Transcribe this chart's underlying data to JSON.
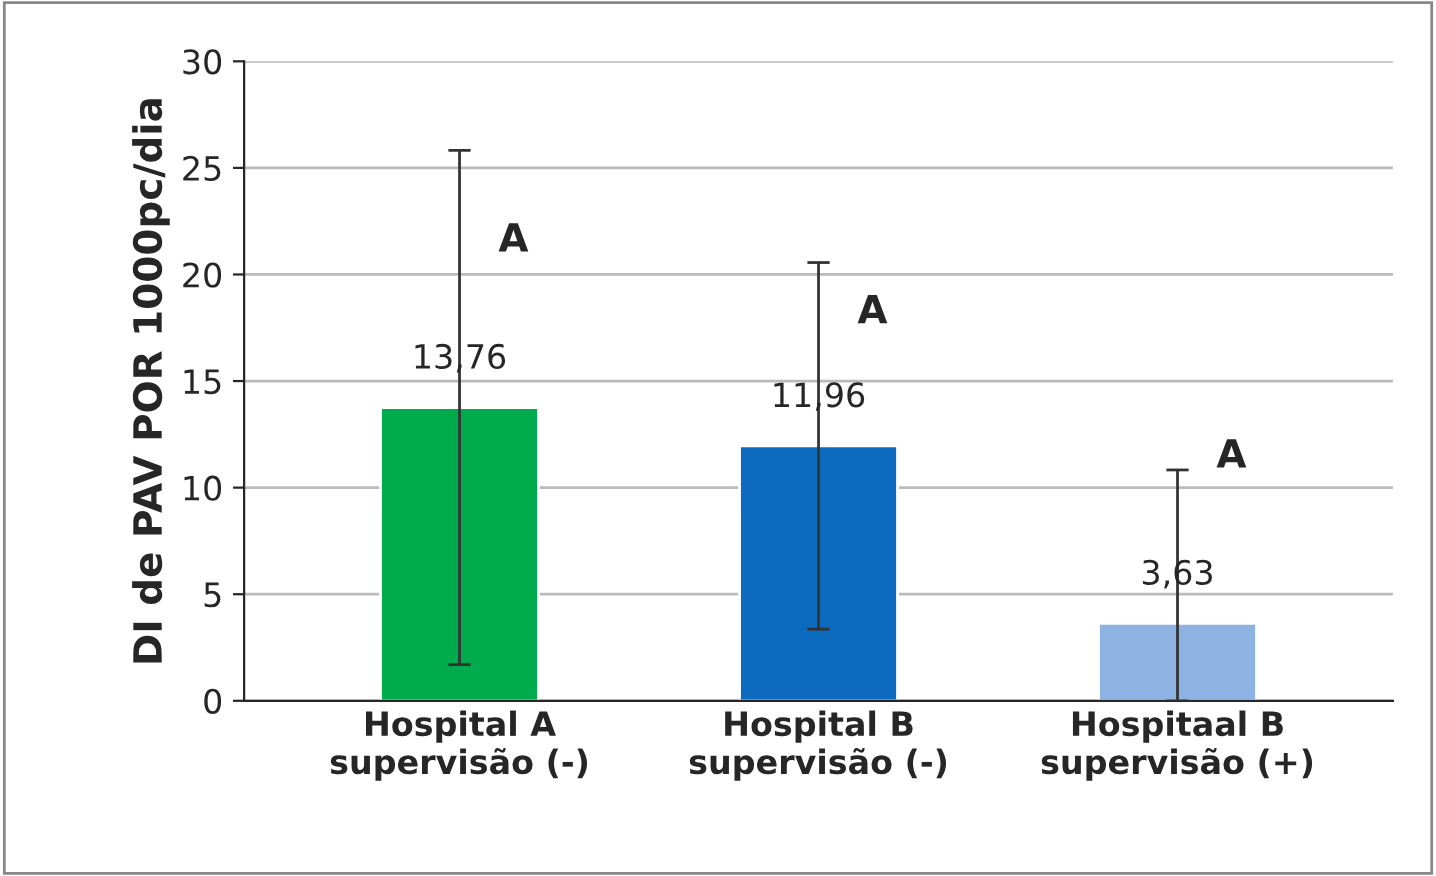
{
  "chart_data": {
    "type": "bar",
    "ylabel": "DI de PAV POR 1000pc/dia",
    "categories": [
      "Hospital A\nsupervisão (-)",
      "Hospital B\nsupervisão (-)",
      "Hospitaal B\nsupervisão (+)"
    ],
    "values": [
      13.76,
      11.96,
      3.63
    ],
    "colors": [
      "#00ab4e",
      "#0d6bbf",
      "#8db3e2"
    ],
    "value_labels": [
      "13,76",
      "11,96",
      "3,63"
    ],
    "errors": [
      [
        1.7,
        25.82
      ],
      [
        3.36,
        20.56
      ],
      [
        0,
        10.83
      ]
    ],
    "annotations": [
      "A",
      "A",
      "A"
    ],
    "ylim": [
      0,
      30
    ],
    "yticks": [
      0,
      5,
      10,
      15,
      20,
      25,
      30
    ],
    "grid": "y"
  }
}
